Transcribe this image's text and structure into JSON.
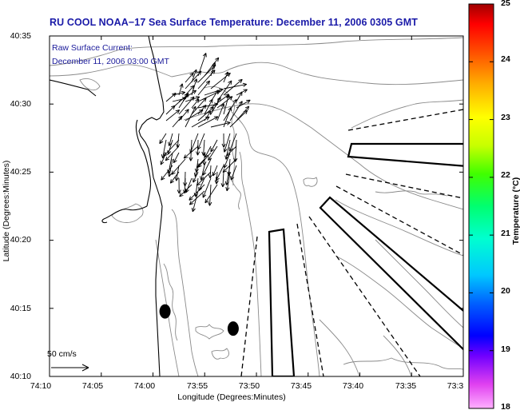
{
  "title": "RU COOL  NOAA−17  Sea Surface Temperature:  December 11, 2006 0305 GMT",
  "annotation": {
    "line1": "Raw Surface Current:",
    "line2": "December 11, 2006 03:00 GMT"
  },
  "axes": {
    "xlabel": "Longitude (Degrees:Minutes)",
    "ylabel": "Latitude (Degrees:Minutes)",
    "x_ticks": [
      {
        "label": "74:10",
        "lon": -74.1667
      },
      {
        "label": "74:05",
        "lon": -74.0833
      },
      {
        "label": "74:00",
        "lon": -74.0
      },
      {
        "label": "73:55",
        "lon": -73.9167
      },
      {
        "label": "73:50",
        "lon": -73.8333
      },
      {
        "label": "73:45",
        "lon": -73.75
      },
      {
        "label": "73:40",
        "lon": -73.6667
      },
      {
        "label": "73:35",
        "lon": -73.5833
      },
      {
        "label": "73:3",
        "lon": -73.5
      }
    ],
    "y_ticks": [
      {
        "label": "40:35",
        "lat": 40.5833
      },
      {
        "label": "40:30",
        "lat": 40.5
      },
      {
        "label": "40:25",
        "lat": 40.4167
      },
      {
        "label": "40:20",
        "lat": 40.3333
      },
      {
        "label": "40:15",
        "lat": 40.25
      },
      {
        "label": "40:10",
        "lat": 40.1667
      }
    ],
    "lon_range": [
      -74.1667,
      -73.5
    ],
    "lat_range": [
      40.1667,
      40.5833
    ]
  },
  "colorbar": {
    "label": "Temperature (°C)",
    "min": 18,
    "max": 25,
    "ticks": [
      "25",
      "24",
      "23",
      "22",
      "21",
      "20",
      "19",
      "18"
    ]
  },
  "scale": {
    "label": "50 cm/s"
  },
  "colors": {
    "title": "#1a1aa8",
    "annotation": "#1a1a9a",
    "contour": "#8a8a8a",
    "coast": "#000000",
    "arrow": "#000000"
  },
  "markers": [
    {
      "name": "buoy-west",
      "lon": -73.9806,
      "lat": 40.2463
    },
    {
      "name": "buoy-east",
      "lon": -73.8708,
      "lat": 40.2253
    }
  ]
}
